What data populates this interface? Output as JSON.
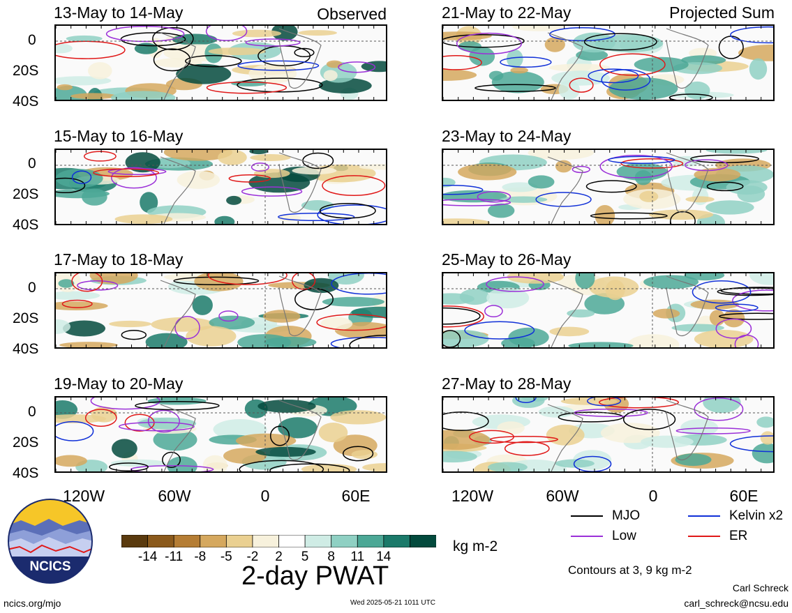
{
  "header": {
    "observed": "Observed",
    "projected": "Projected Sum"
  },
  "panels": {
    "left": [
      "13-May to 14-May",
      "15-May to 16-May",
      "17-May to 18-May",
      "19-May to 20-May"
    ],
    "right": [
      "21-May to 22-May",
      "23-May to 24-May",
      "25-May to 26-May",
      "27-May to 28-May"
    ]
  },
  "lat_ticks": [
    "0",
    "20S",
    "40S"
  ],
  "lon_ticks": [
    "120W",
    "60W",
    "0",
    "60E"
  ],
  "colorbar": {
    "ticks": [
      "-14",
      "-11",
      "-8",
      "-5",
      "-2",
      "2",
      "5",
      "8",
      "11",
      "14"
    ],
    "colors": [
      "#5a3a0e",
      "#8b5a1c",
      "#b57d34",
      "#d5a85e",
      "#ead091",
      "#f7f1dc",
      "#ffffff",
      "#cfece5",
      "#8fd0c3",
      "#4ca896",
      "#1b7a6a",
      "#034a3d"
    ],
    "units": "kg m-2",
    "title": "2-day PWAT"
  },
  "legend": {
    "items": [
      {
        "label": "MJO",
        "color": "#000000"
      },
      {
        "label": "Kelvin x2",
        "color": "#1030d8"
      },
      {
        "label": "Low",
        "color": "#9b30d8"
      },
      {
        "label": "ER",
        "color": "#e01818"
      }
    ],
    "note": "Contours at 3, 9 kg m-2"
  },
  "logo": {
    "text": "NCICS"
  },
  "footer": {
    "url": "ncics.org/mjo",
    "timestamp": "Wed 2025-05-21 1011 UTC",
    "author": "Carl Schreck",
    "email": "carl_schreck@ncsu.edu"
  }
}
